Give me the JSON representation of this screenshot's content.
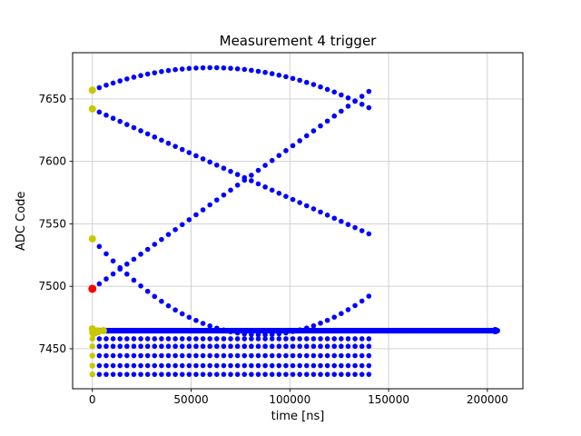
{
  "chart_data": {
    "type": "scatter",
    "title": "Measurement 4 trigger",
    "xlabel": "time [ns]",
    "ylabel": "ADC Code",
    "xlim": [
      -10000,
      218000
    ],
    "ylim": [
      7418,
      7687
    ],
    "xticks": [
      0,
      50000,
      100000,
      150000,
      200000
    ],
    "yticks": [
      7450,
      7500,
      7550,
      7600,
      7650
    ],
    "grid": true,
    "legend": "none",
    "colors": {
      "blue": "#0000ff",
      "yellow": "#c8c800",
      "red": "#ff0000",
      "grid": "#cccccc",
      "spine": "#000000"
    },
    "series": [
      {
        "name": "upper-arc",
        "color": "blue",
        "r": 2.8,
        "x_start": 0,
        "x_step": 3500,
        "y": [
          7657,
          7659,
          7661,
          7662.7,
          7664.4,
          7666,
          7667.4,
          7668.7,
          7669.9,
          7670.9,
          7671.9,
          7672.7,
          7673.4,
          7673.9,
          7674.4,
          7674.7,
          7674.9,
          7675,
          7675,
          7674.8,
          7674.5,
          7674.1,
          7673.6,
          7672.9,
          7672.1,
          7671.2,
          7670.2,
          7669,
          7667.8,
          7666.4,
          7664.9,
          7663.2,
          7661.5,
          7659.6,
          7657.6,
          7655.5,
          7653.2,
          7650.8,
          7648.4,
          7645.7,
          7643
        ]
      },
      {
        "name": "falling-diagonal",
        "color": "blue",
        "r": 2.8,
        "x_start": 0,
        "x_step": 3500,
        "y": [
          7642,
          7639.5,
          7637,
          7634.5,
          7632,
          7629.5,
          7627,
          7624.5,
          7622,
          7619.5,
          7617,
          7614.5,
          7612,
          7609.5,
          7607,
          7604.5,
          7602,
          7599.5,
          7597,
          7594.5,
          7592,
          7589.5,
          7587,
          7584.5,
          7582,
          7579.5,
          7577,
          7574.5,
          7572,
          7569.5,
          7567,
          7564.5,
          7562,
          7559.5,
          7557,
          7554.5,
          7552,
          7549.5,
          7547,
          7544.5,
          7542
        ]
      },
      {
        "name": "rising-diagonal",
        "color": "blue",
        "r": 2.8,
        "x_start": 0,
        "x_step": 3500,
        "y": [
          7498,
          7502,
          7505.9,
          7509.9,
          7513.8,
          7517.8,
          7521.7,
          7525.7,
          7529.6,
          7533.6,
          7537.5,
          7541.5,
          7545.4,
          7549.4,
          7553.3,
          7557.3,
          7561.2,
          7565.2,
          7569.1,
          7573.1,
          7577,
          7581,
          7584.9,
          7588.9,
          7592.8,
          7596.8,
          7600.7,
          7604.7,
          7608.6,
          7612.6,
          7616.5,
          7620.5,
          7624.4,
          7628.4,
          7632.3,
          7636.3,
          7640.2,
          7644.2,
          7648.1,
          7652.1,
          7656
        ]
      },
      {
        "name": "valley-curve",
        "color": "blue",
        "r": 2.8,
        "x_start": 0,
        "x_step": 3500,
        "y": [
          7538,
          7531.9,
          7526,
          7520.3,
          7514.9,
          7509.8,
          7504.9,
          7500.3,
          7496,
          7491.9,
          7488,
          7484.4,
          7481.1,
          7478,
          7475.2,
          7472.7,
          7470.3,
          7468.3,
          7466.5,
          7465,
          7463.7,
          7462.7,
          7461.9,
          7461.4,
          7461.2,
          7461.2,
          7461.4,
          7462,
          7462.7,
          7463.8,
          7465.1,
          7466.6,
          7468.4,
          7470.5,
          7472.8,
          7475.3,
          7478.2,
          7481.3,
          7484.6,
          7488.2,
          7492.1
        ]
      }
    ],
    "rows": [
      {
        "name": "baseline-band",
        "color": "blue",
        "y": 7464.5,
        "x_start": 0,
        "x_end": 205000,
        "step": 1000,
        "r": 3.2
      },
      {
        "name": "row-7458",
        "color": "blue",
        "y": 7458,
        "x_start": 0,
        "x_end": 140000,
        "step": 3500,
        "r": 2.8
      },
      {
        "name": "row-7452",
        "color": "blue",
        "y": 7452,
        "x_start": 0,
        "x_end": 140000,
        "step": 3500,
        "r": 2.8
      },
      {
        "name": "row-7444",
        "color": "blue",
        "y": 7444.5,
        "x_start": 0,
        "x_end": 140000,
        "step": 3500,
        "r": 2.8
      },
      {
        "name": "row-7437",
        "color": "blue",
        "y": 7436.5,
        "x_start": 0,
        "x_end": 140000,
        "step": 3500,
        "r": 2.8
      },
      {
        "name": "row-7430",
        "color": "blue",
        "y": 7429.5,
        "x_start": 0,
        "x_end": 140000,
        "step": 3500,
        "r": 2.8
      }
    ],
    "highlight_points": [
      {
        "name": "start-marker-7657",
        "x": 0,
        "y": 7657,
        "r": 4,
        "color": "yellow"
      },
      {
        "name": "start-marker-7642",
        "x": 0,
        "y": 7642,
        "r": 4,
        "color": "yellow"
      },
      {
        "name": "start-marker-7538",
        "x": 0,
        "y": 7538,
        "r": 4,
        "color": "yellow"
      },
      {
        "name": "start-marker-7466",
        "x": 0,
        "y": 7466,
        "r": 4,
        "color": "yellow"
      },
      {
        "name": "start-marker-blob",
        "x": 700,
        "y": 7463,
        "r": 5,
        "color": "yellow"
      },
      {
        "name": "start-marker-7464a",
        "x": 2800,
        "y": 7464,
        "r": 4.5,
        "color": "yellow"
      },
      {
        "name": "start-marker-7464b",
        "x": 5600,
        "y": 7464.5,
        "r": 4,
        "color": "yellow"
      },
      {
        "name": "start-marker-7458",
        "x": 0,
        "y": 7458,
        "r": 3.2,
        "color": "yellow"
      },
      {
        "name": "start-marker-7452",
        "x": 0,
        "y": 7452,
        "r": 3.2,
        "color": "yellow"
      },
      {
        "name": "start-marker-7444",
        "x": 0,
        "y": 7444.5,
        "r": 3.2,
        "color": "yellow"
      },
      {
        "name": "start-marker-7436",
        "x": 0,
        "y": 7436.5,
        "r": 3.2,
        "color": "yellow"
      },
      {
        "name": "start-marker-7429",
        "x": 0,
        "y": 7429.5,
        "r": 3.2,
        "color": "yellow"
      },
      {
        "name": "band-end-blob",
        "x": 204000,
        "y": 7464.5,
        "r": 4,
        "color": "blue"
      },
      {
        "name": "trigger-point",
        "x": 0,
        "y": 7498,
        "r": 4.5,
        "color": "red"
      }
    ]
  }
}
